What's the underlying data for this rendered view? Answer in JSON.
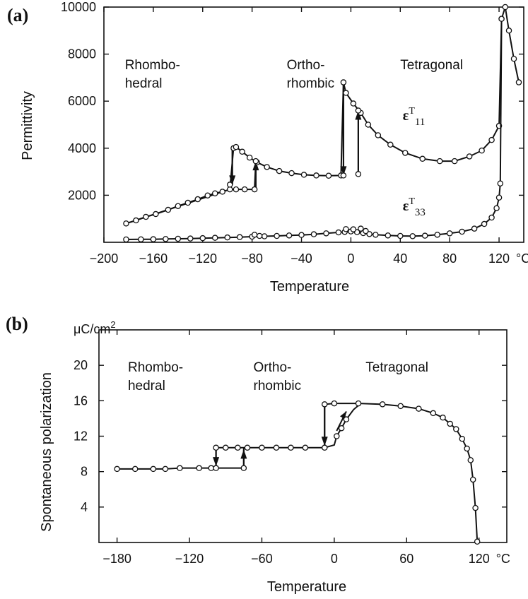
{
  "chart_data": [
    {
      "panel": "(a)",
      "type": "line",
      "xlabel": "Temperature",
      "ylabel": "Permittivity",
      "x_unit": "°C",
      "xlim": [
        -200,
        140
      ],
      "ylim": [
        0,
        10000
      ],
      "x_ticks": [
        -200,
        -160,
        -120,
        -80,
        -40,
        0,
        40,
        80,
        120
      ],
      "x_tick_labels": [
        "−200",
        "−160",
        "−120",
        "−80",
        "−40",
        "0",
        "40",
        "80",
        "120"
      ],
      "y_ticks": [
        2000,
        4000,
        6000,
        8000,
        10000
      ],
      "y_tick_labels": [
        "2000",
        "4000",
        "6000",
        "8000",
        "10000"
      ],
      "annotations": [
        {
          "lines": [
            "Rhombo-",
            "hedral"
          ],
          "x": -183,
          "y": 7350
        },
        {
          "lines": [
            "Ortho-",
            "rhombic"
          ],
          "x": -52,
          "y": 7350
        },
        {
          "lines": [
            "Tetragonal"
          ],
          "x": 40,
          "y": 7350
        }
      ],
      "series": [
        {
          "label_main": "ε",
          "label_sup": "T",
          "label_sub": "11",
          "label_pos": [
            42,
            5200
          ],
          "points": [
            [
              -182,
              800
            ],
            [
              -174,
              930
            ],
            [
              -166,
              1080
            ],
            [
              -158,
              1200
            ],
            [
              -148,
              1380
            ],
            [
              -140,
              1540
            ],
            [
              -132,
              1680
            ],
            [
              -124,
              1830
            ],
            [
              -116,
              1990
            ],
            [
              -110,
              2080
            ],
            [
              -104,
              2150
            ],
            [
              -98,
              2250
            ],
            [
              -95,
              4000
            ],
            [
              -93,
              4050
            ],
            [
              -88,
              3850
            ],
            [
              -82,
              3600
            ],
            [
              -76,
              3400
            ],
            [
              -68,
              3200
            ],
            [
              -58,
              3030
            ],
            [
              -48,
              2940
            ],
            [
              -38,
              2870
            ],
            [
              -28,
              2840
            ],
            [
              -18,
              2830
            ],
            [
              -8,
              2840
            ],
            [
              -6,
              6800
            ],
            [
              -4,
              6350
            ],
            [
              2,
              5900
            ],
            [
              8,
              5500
            ],
            [
              14,
              5000
            ],
            [
              22,
              4550
            ],
            [
              32,
              4150
            ],
            [
              44,
              3800
            ],
            [
              58,
              3550
            ],
            [
              72,
              3450
            ],
            [
              84,
              3450
            ],
            [
              96,
              3650
            ],
            [
              106,
              3900
            ],
            [
              114,
              4350
            ],
            [
              120,
              4950
            ],
            [
              122,
              9500
            ],
            [
              125,
              10000
            ],
            [
              128,
              9000
            ],
            [
              132,
              7800
            ],
            [
              136,
              6800
            ]
          ],
          "heating_path": [
            [
              -182,
              800
            ],
            [
              -98,
              2250
            ],
            [
              -78,
              2250
            ],
            [
              -77,
              3450
            ]
          ],
          "extra_points": [
            [
              -98,
              2450
            ],
            [
              -93,
              2250
            ],
            [
              -86,
              2250
            ],
            [
              -78,
              2250
            ],
            [
              -77,
              3450
            ],
            [
              -6,
              2840
            ],
            [
              6,
              2900
            ],
            [
              6,
              5600
            ]
          ],
          "arrows": [
            {
              "x": -96,
              "from": 4000,
              "to": 2450,
              "dir": "down"
            },
            {
              "x": -77,
              "from": 2250,
              "to": 3450,
              "dir": "up"
            },
            {
              "x": -6,
              "from": 6800,
              "to": 2840,
              "dir": "down"
            },
            {
              "x": 6,
              "from": 2900,
              "to": 5600,
              "dir": "up"
            }
          ]
        },
        {
          "label_main": "ε",
          "label_sup": "T",
          "label_sub": "33",
          "label_pos": [
            42,
            1350
          ],
          "points": [
            [
              -182,
              120
            ],
            [
              -170,
              125
            ],
            [
              -160,
              130
            ],
            [
              -150,
              140
            ],
            [
              -140,
              150
            ],
            [
              -130,
              160
            ],
            [
              -120,
              175
            ],
            [
              -110,
              190
            ],
            [
              -100,
              205
            ],
            [
              -90,
              220
            ],
            [
              -80,
              240
            ],
            [
              -70,
              255
            ],
            [
              -60,
              270
            ],
            [
              -50,
              290
            ],
            [
              -40,
              310
            ],
            [
              -30,
              340
            ],
            [
              -20,
              380
            ],
            [
              -10,
              420
            ],
            [
              -5,
              440
            ],
            [
              0,
              460
            ],
            [
              5,
              430
            ],
            [
              10,
              390
            ],
            [
              15,
              350
            ],
            [
              20,
              320
            ],
            [
              30,
              290
            ],
            [
              40,
              270
            ],
            [
              50,
              260
            ],
            [
              60,
              280
            ],
            [
              70,
              320
            ],
            [
              80,
              380
            ],
            [
              90,
              450
            ],
            [
              100,
              580
            ],
            [
              108,
              780
            ],
            [
              114,
              1050
            ],
            [
              118,
              1450
            ],
            [
              120,
              1900
            ],
            [
              121,
              2500
            ],
            [
              122,
              9500
            ]
          ],
          "extra_points": [
            [
              -78,
              320
            ],
            [
              -74,
              270
            ],
            [
              -4,
              560
            ],
            [
              2,
              550
            ],
            [
              8,
              580
            ],
            [
              12,
              480
            ]
          ],
          "arrows": []
        }
      ]
    },
    {
      "panel": "(b)",
      "type": "line",
      "xlabel": "Temperature",
      "ylabel": "Spontaneous polarization",
      "y_unit_label": "μC/cm",
      "y_unit_sup": "2",
      "x_unit": "°C",
      "xlim": [
        -195,
        143
      ],
      "ylim": [
        0,
        24
      ],
      "x_ticks": [
        -180,
        -120,
        -60,
        0,
        60,
        120
      ],
      "x_tick_labels": [
        "−180",
        "−120",
        "−60",
        "0",
        "60",
        "120"
      ],
      "y_ticks": [
        4,
        8,
        12,
        16,
        20
      ],
      "y_tick_labels": [
        "4",
        "8",
        "12",
        "16",
        "20"
      ],
      "annotations": [
        {
          "lines": [
            "Rhombo-",
            "hedral"
          ],
          "x": -171,
          "y": 19.3
        },
        {
          "lines": [
            "Ortho-",
            "rhombic"
          ],
          "x": -67,
          "y": 19.3
        },
        {
          "lines": [
            "Tetragonal"
          ],
          "x": 26,
          "y": 19.3
        }
      ],
      "series": [
        {
          "cooling_path": [
            [
              -180,
              8.3
            ],
            [
              -165,
              8.3
            ],
            [
              -150,
              8.3
            ],
            [
              -140,
              8.3
            ],
            [
              -128,
              8.4
            ],
            [
              -112,
              8.4
            ],
            [
              -102,
              8.4
            ],
            [
              -98,
              8.4
            ],
            [
              -98,
              10.7
            ],
            [
              -90,
              10.7
            ],
            [
              -80,
              10.7
            ],
            [
              -72,
              10.7
            ],
            [
              -60,
              10.7
            ],
            [
              -48,
              10.7
            ],
            [
              -36,
              10.7
            ],
            [
              -24,
              10.7
            ],
            [
              -10,
              10.7
            ],
            [
              -8,
              10.7
            ],
            [
              -8,
              15.6
            ],
            [
              0,
              15.7
            ],
            [
              10,
              15.7
            ],
            [
              20,
              15.7
            ],
            [
              40,
              15.6
            ],
            [
              55,
              15.4
            ],
            [
              70,
              15.1
            ],
            [
              82,
              14.6
            ],
            [
              90,
              14.1
            ],
            [
              96,
              13.4
            ],
            [
              101,
              12.8
            ],
            [
              106,
              11.7
            ],
            [
              110,
              10.6
            ],
            [
              113,
              9.3
            ],
            [
              115,
              7.1
            ],
            [
              117,
              3.9
            ],
            [
              118.5,
              0.1
            ]
          ],
          "heating_path": [
            [
              -98,
              8.4
            ],
            [
              -75,
              8.4
            ],
            [
              -75,
              10.7
            ]
          ],
          "warm_branch": [
            [
              -8,
              10.7
            ],
            [
              0,
              11.0
            ],
            [
              2,
              12.0
            ],
            [
              6,
              12.9
            ],
            [
              10,
              13.9
            ],
            [
              16,
              15.0
            ],
            [
              22,
              15.7
            ]
          ],
          "points": [
            [
              -180,
              8.3
            ],
            [
              -165,
              8.3
            ],
            [
              -150,
              8.3
            ],
            [
              -140,
              8.3
            ],
            [
              -128,
              8.4
            ],
            [
              -112,
              8.4
            ],
            [
              -102,
              8.4
            ],
            [
              -98,
              8.4
            ],
            [
              -75,
              8.4
            ],
            [
              -98,
              10.7
            ],
            [
              -90,
              10.7
            ],
            [
              -80,
              10.7
            ],
            [
              -72,
              10.7
            ],
            [
              -60,
              10.7
            ],
            [
              -48,
              10.7
            ],
            [
              -36,
              10.7
            ],
            [
              -24,
              10.7
            ],
            [
              -8,
              10.7
            ],
            [
              -8,
              15.6
            ],
            [
              0,
              15.7
            ],
            [
              20,
              15.7
            ],
            [
              40,
              15.6
            ],
            [
              55,
              15.4
            ],
            [
              70,
              15.1
            ],
            [
              82,
              14.6
            ],
            [
              90,
              14.1
            ],
            [
              96,
              13.4
            ],
            [
              101,
              12.8
            ],
            [
              106,
              11.7
            ],
            [
              110,
              10.6
            ],
            [
              113,
              9.3
            ],
            [
              115,
              7.1
            ],
            [
              117,
              3.9
            ],
            [
              118.5,
              0.1
            ],
            [
              2,
              12.0
            ],
            [
              6,
              12.9
            ],
            [
              10,
              13.9
            ]
          ],
          "arrows": [
            {
              "x": -98,
              "from": 10.7,
              "to": 8.6,
              "dir": "down"
            },
            {
              "x": -75,
              "from": 8.4,
              "to": 10.5,
              "dir": "up"
            },
            {
              "x": -8,
              "from": 15.6,
              "to": 10.9,
              "dir": "down"
            },
            {
              "x": 5,
              "from": 12.6,
              "to": 14.8,
              "dir": "up",
              "slanted": true
            }
          ]
        }
      ]
    }
  ]
}
